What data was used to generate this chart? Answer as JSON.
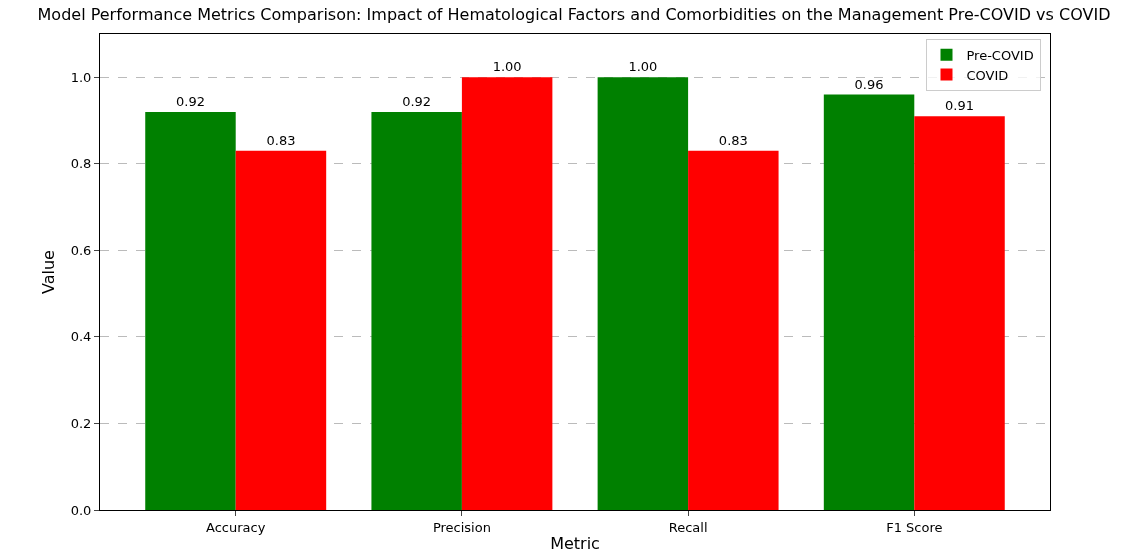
{
  "chart_data": {
    "type": "bar",
    "title": "Model Performance Metrics Comparison: Impact of Hematological Factors and Comorbidities on the Management Pre-COVID vs COVID",
    "xlabel": "Metric",
    "ylabel": "Value",
    "categories": [
      "Accuracy",
      "Precision",
      "Recall",
      "F1 Score"
    ],
    "series": [
      {
        "name": "Pre-COVID",
        "color": "#008000",
        "values": [
          0.92,
          0.92,
          1.0,
          0.96
        ],
        "value_labels": [
          "0.92",
          "0.92",
          "1.00",
          "0.96"
        ]
      },
      {
        "name": "COVID",
        "color": "#ff0000",
        "values": [
          0.83,
          1.0,
          0.83,
          0.91
        ],
        "value_labels": [
          "0.83",
          "1.00",
          "0.83",
          "0.91"
        ]
      }
    ],
    "ylim": [
      0,
      1.1
    ],
    "yticks": [
      {
        "value": 0,
        "label": "0.0"
      },
      {
        "value": 0.2,
        "label": "0.2"
      },
      {
        "value": 0.4,
        "label": "0.4"
      },
      {
        "value": 0.6,
        "label": "0.6"
      },
      {
        "value": 0.8,
        "label": "0.8"
      },
      {
        "value": 1,
        "label": "1.0"
      }
    ],
    "grid": "y",
    "legend": "top right"
  }
}
